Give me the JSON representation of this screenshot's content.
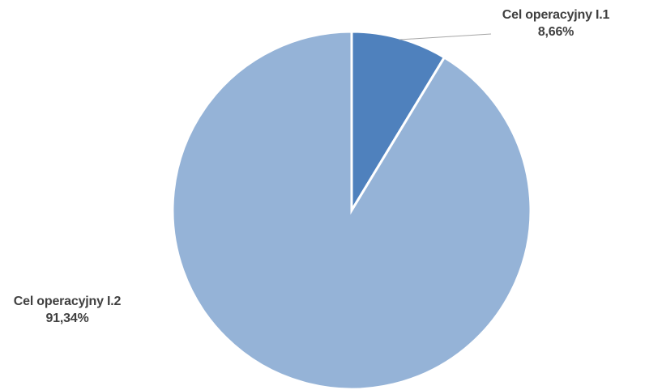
{
  "chart_data": {
    "type": "pie",
    "title": "",
    "start_angle_deg": 0,
    "direction": "clockwise",
    "slices": [
      {
        "label": "Cel operacyjny I.1",
        "value": 8.66,
        "value_text": "8,66%",
        "color": "#4f81bd"
      },
      {
        "label": "Cel operacyjny I.2",
        "value": 91.34,
        "value_text": "91,34%",
        "color": "#95b3d7"
      }
    ],
    "slice_border_color": "#ffffff",
    "leader_line_color": "#a6a6a6",
    "legend": "none"
  }
}
